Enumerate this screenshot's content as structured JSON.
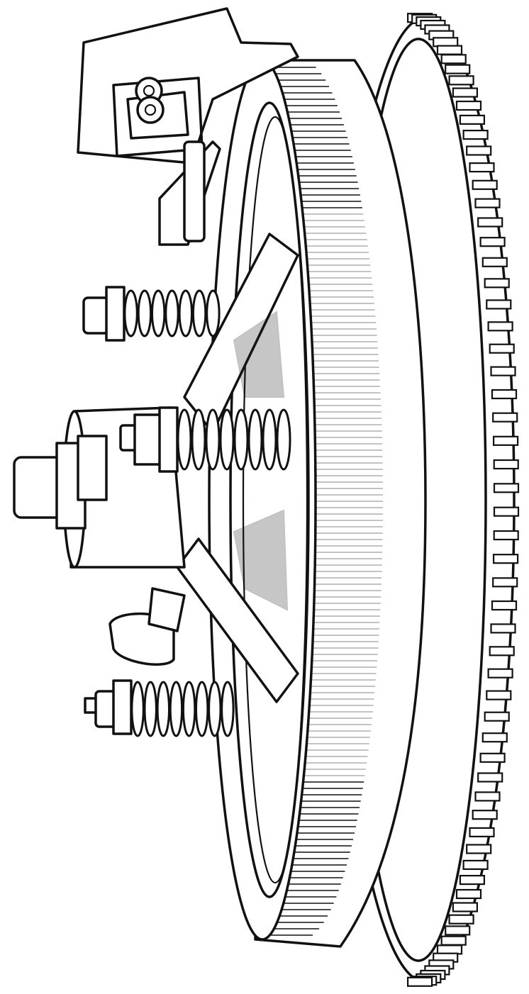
{
  "figure": {
    "subject": "",
    "colors": {
      "ink": "#111111",
      "paper": "#ffffff"
    },
    "parts": {
      "spring_count": 3,
      "gear_tooth_count": 64
    }
  }
}
